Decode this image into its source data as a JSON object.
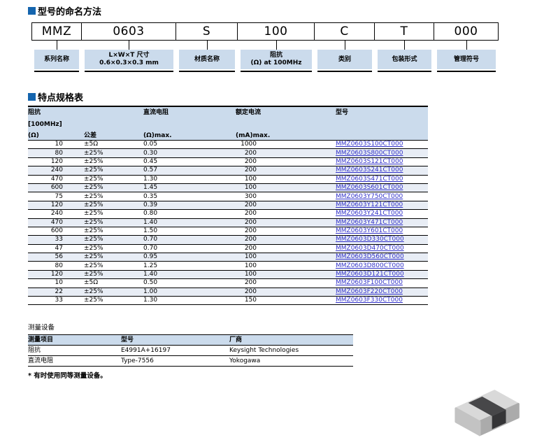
{
  "colors": {
    "accent_blue": "#1565ae",
    "band_blue": "#cbdbec",
    "row_alt_blue": "#e8edf5",
    "link_blue": "#3030c8",
    "chip_body": "#353537",
    "chip_terminal": "#c3c3c3"
  },
  "naming_section": {
    "title": "型号的命名方法",
    "segments": [
      {
        "code": "MMZ",
        "label1": "系列名称"
      },
      {
        "code": "0603",
        "label1": "L×W×T 尺寸",
        "label2": "0.6×0.3×0.3 mm"
      },
      {
        "code": "S",
        "label1": "材质名称"
      },
      {
        "code": "100",
        "label1": "阻抗",
        "label2": "(Ω) at 100MHz"
      },
      {
        "code": "C",
        "label1": "类别"
      },
      {
        "code": "T",
        "label1": "包装形式"
      },
      {
        "code": "000",
        "label1": "管理符号"
      }
    ]
  },
  "spec_section": {
    "title": "特点规格表",
    "header": {
      "impedance_l1": "阻抗",
      "impedance_l2": "[100MHz]",
      "impedance_l3": "(Ω)",
      "tolerance": "公差",
      "dcr_l1": "直流电阻",
      "dcr_l3": "(Ω)max.",
      "current_l1": "额定电流",
      "current_l3": "(mA)max.",
      "part_no": "型号"
    },
    "rows": [
      [
        "10",
        "±5Ω",
        "0.05",
        "1000",
        "MMZ0603S100CT000"
      ],
      [
        "80",
        "±25%",
        "0.30",
        "200",
        "MMZ0603S800CT000"
      ],
      [
        "120",
        "±25%",
        "0.45",
        "200",
        "MMZ0603S121CT000"
      ],
      [
        "240",
        "±25%",
        "0.57",
        "200",
        "MMZ0603S241CT000"
      ],
      [
        "470",
        "±25%",
        "1.30",
        "100",
        "MMZ0603S471CT000"
      ],
      [
        "600",
        "±25%",
        "1.45",
        "100",
        "MMZ0603S601CT000"
      ],
      [
        "75",
        "±25%",
        "0.35",
        "300",
        "MMZ0603Y750CT000"
      ],
      [
        "120",
        "±25%",
        "0.39",
        "200",
        "MMZ0603Y121CT000"
      ],
      [
        "240",
        "±25%",
        "0.80",
        "200",
        "MMZ0603Y241CT000"
      ],
      [
        "470",
        "±25%",
        "1.40",
        "200",
        "MMZ0603Y471CT000"
      ],
      [
        "600",
        "±25%",
        "1.50",
        "200",
        "MMZ0603Y601CT000"
      ],
      [
        "33",
        "±25%",
        "0.70",
        "200",
        "MMZ0603D330CT000"
      ],
      [
        "47",
        "±25%",
        "0.70",
        "200",
        "MMZ0603D470CT000"
      ],
      [
        "56",
        "±25%",
        "0.95",
        "100",
        "MMZ0603D560CT000"
      ],
      [
        "80",
        "±25%",
        "1.25",
        "100",
        "MMZ0603D800CT000"
      ],
      [
        "120",
        "±25%",
        "1.40",
        "100",
        "MMZ0603D121CT000"
      ],
      [
        "10",
        "±5Ω",
        "0.50",
        "200",
        "MMZ0603F100CT000"
      ],
      [
        "22",
        "±25%",
        "1.00",
        "200",
        "MMZ0603F220CT000"
      ],
      [
        "33",
        "±25%",
        "1.30",
        "150",
        "MMZ0603F330CT000"
      ]
    ]
  },
  "measurement_section": {
    "title": "测量设备",
    "headers": [
      "测量项目",
      "型号",
      "厂商"
    ],
    "rows": [
      [
        "阻抗",
        "E4991A+16197",
        "Keysight Technologies"
      ],
      [
        "直流电阻",
        "Type-7556",
        "Yokogawa"
      ]
    ],
    "note": "* 有时使用同等测量设备。"
  },
  "chip_photo": "multilayer-chip-bead-product-photo"
}
